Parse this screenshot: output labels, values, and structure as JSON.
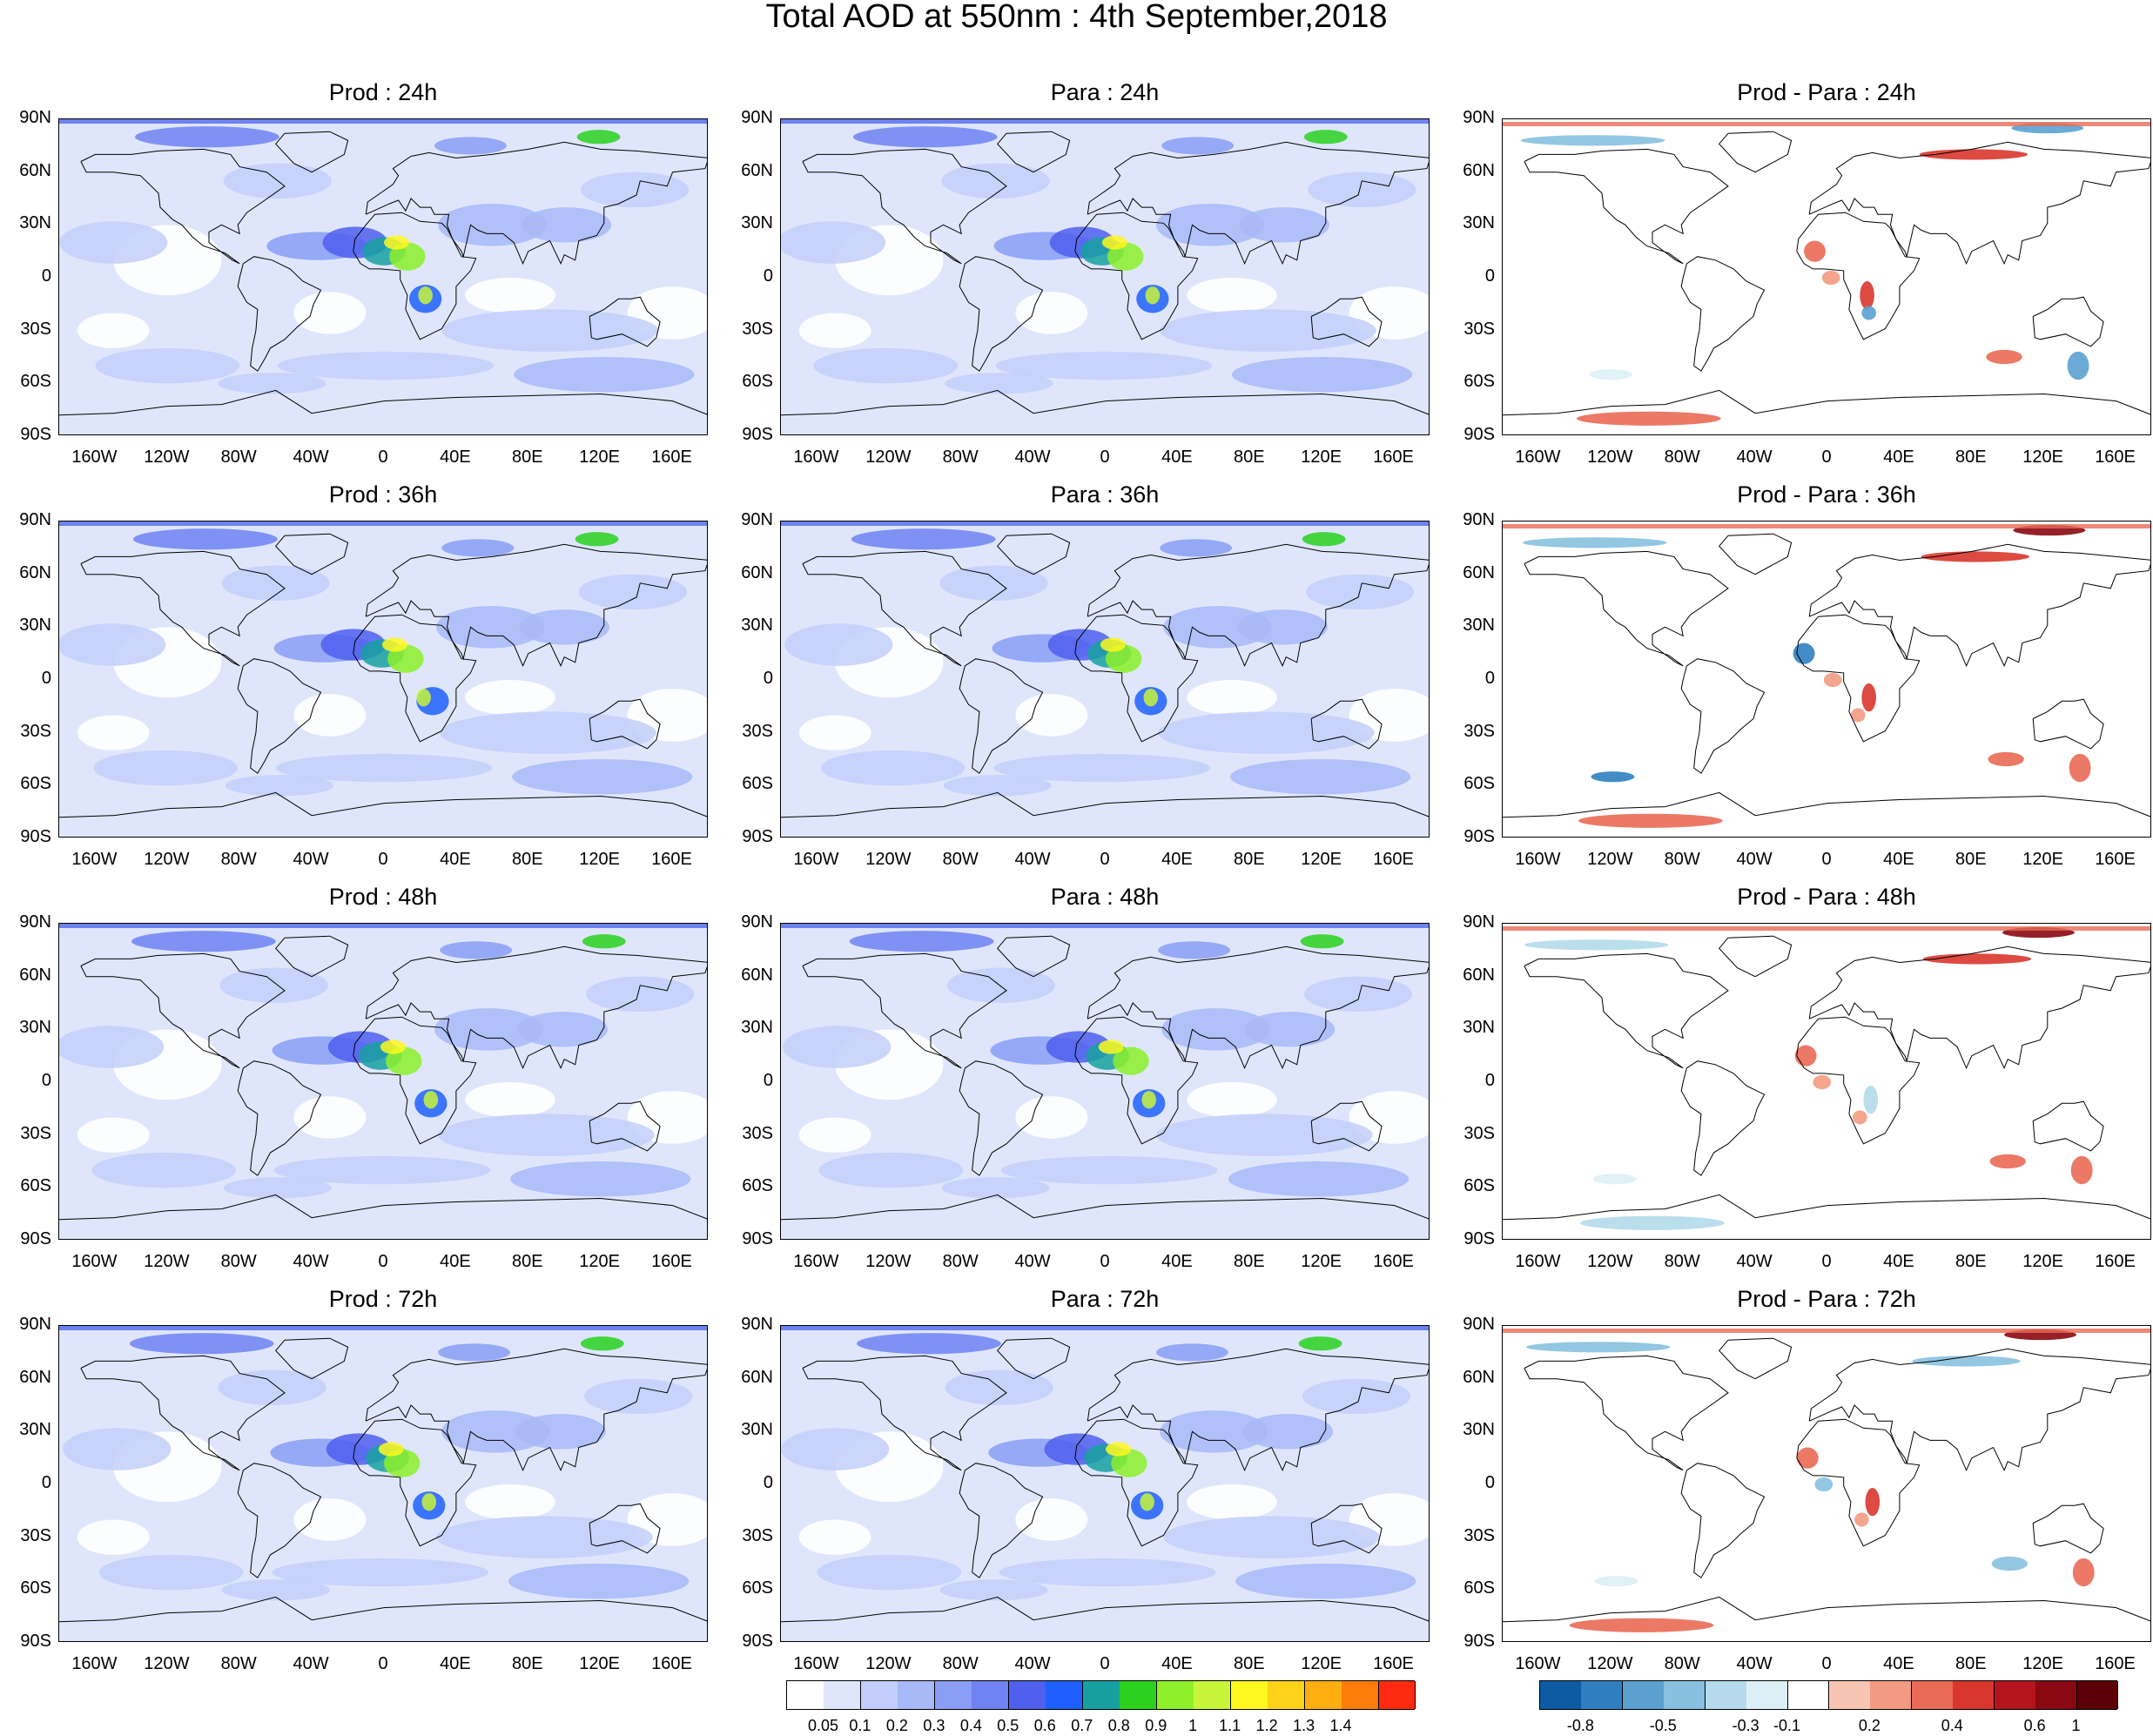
{
  "title": "Total AOD at 550nm : 4th September,2018",
  "lat_labels": [
    "90N",
    "60N",
    "30N",
    "0",
    "30S",
    "60S",
    "90S"
  ],
  "lon_labels": [
    "160W",
    "120W",
    "80W",
    "40W",
    "0",
    "40E",
    "80E",
    "120E",
    "160E"
  ],
  "panels": [
    {
      "title": "Prod : 24h",
      "kind": "aod"
    },
    {
      "title": "Para : 24h",
      "kind": "aod"
    },
    {
      "title": "Prod - Para : 24h",
      "kind": "diff"
    },
    {
      "title": "Prod : 36h",
      "kind": "aod"
    },
    {
      "title": "Para : 36h",
      "kind": "aod"
    },
    {
      "title": "Prod - Para : 36h",
      "kind": "diff"
    },
    {
      "title": "Prod : 48h",
      "kind": "aod"
    },
    {
      "title": "Para : 48h",
      "kind": "aod"
    },
    {
      "title": "Prod - Para : 48h",
      "kind": "diff"
    },
    {
      "title": "Prod : 72h",
      "kind": "aod"
    },
    {
      "title": "Para : 72h",
      "kind": "aod"
    },
    {
      "title": "Prod - Para : 72h",
      "kind": "diff"
    }
  ],
  "aod_colorbar": {
    "labels": [
      "0.05",
      "0.1",
      "0.2",
      "0.3",
      "0.4",
      "0.5",
      "0.6",
      "0.7",
      "0.8",
      "0.9",
      "1",
      "1.1",
      "1.2",
      "1.3",
      "1.4"
    ],
    "colors": [
      "#ffffff",
      "#dfe6fc",
      "#c3cffa",
      "#a8b9f7",
      "#8a9ef5",
      "#6e82f2",
      "#4f5fee",
      "#1f5fff",
      "#17a0a0",
      "#2ad11f",
      "#8df02a",
      "#c8f53a",
      "#fff81e",
      "#ffd21a",
      "#ffae12",
      "#ff7b0c",
      "#ff2a10"
    ]
  },
  "diff_colorbar": {
    "labels": [
      "-0.8",
      "-0.5",
      "-0.3",
      "-0.1",
      "0.2",
      "0.4",
      "0.6",
      "1"
    ],
    "colors": [
      "#0c5ba3",
      "#2f7fbf",
      "#5aa1d0",
      "#87c1df",
      "#b4daeb",
      "#ddeff6",
      "#ffffff",
      "#f8c5b3",
      "#f39b82",
      "#e96a55",
      "#d9362e",
      "#b3141d",
      "#890811",
      "#5c0008"
    ]
  }
}
